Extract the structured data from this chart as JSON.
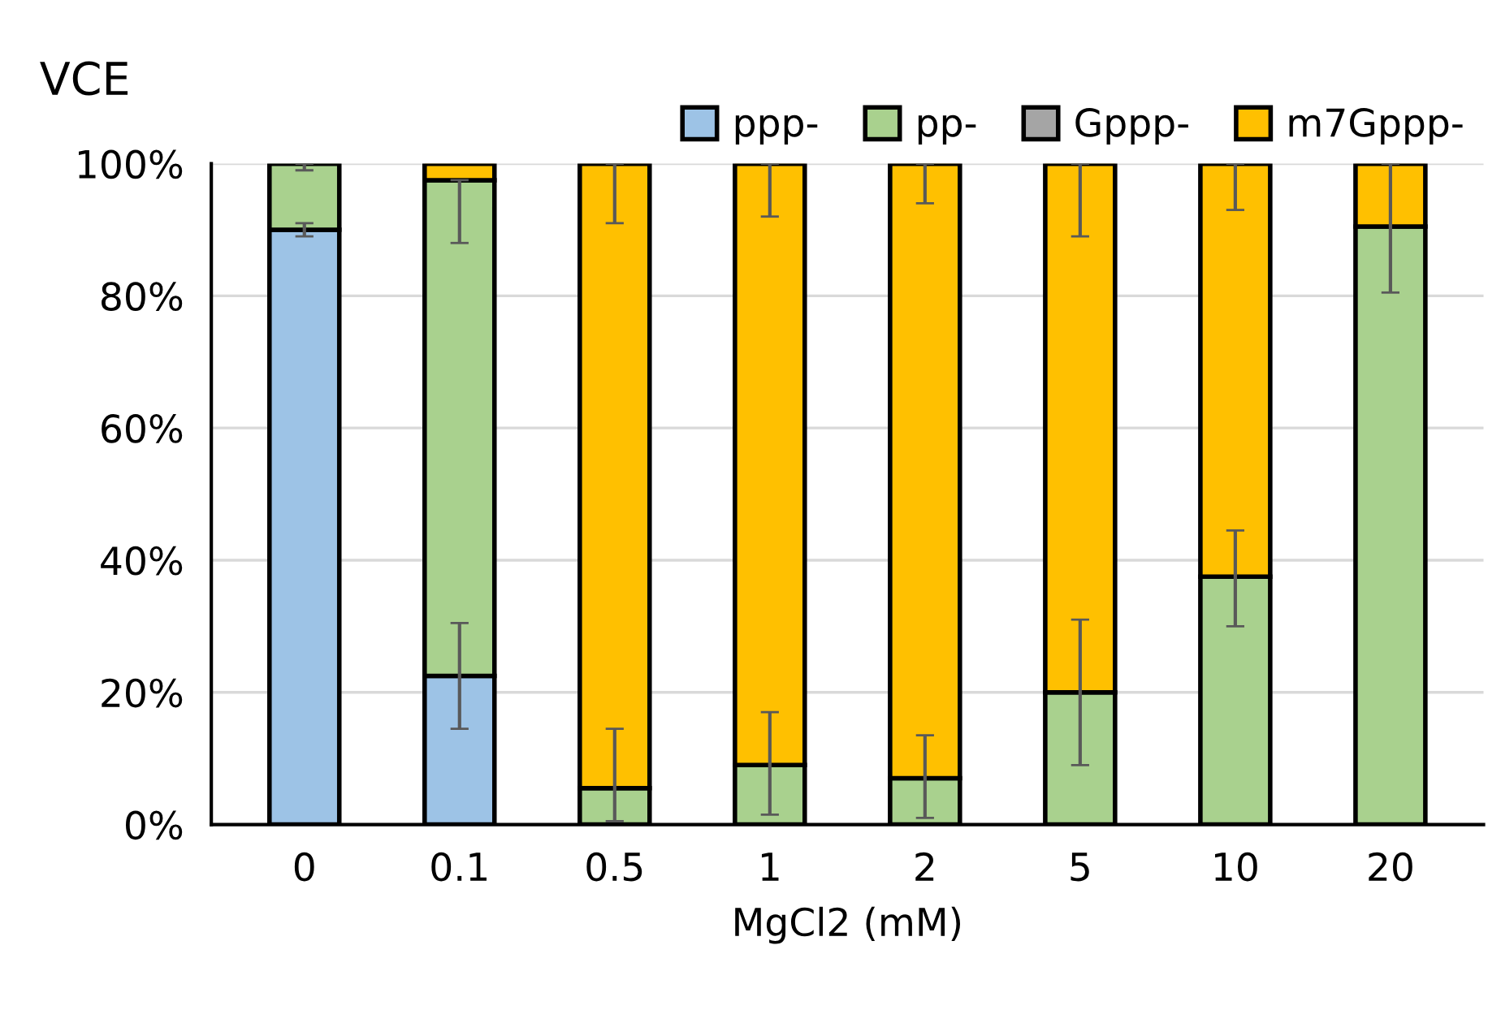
{
  "chart_data": {
    "type": "bar",
    "stacked": true,
    "ylabel": "VCE",
    "xlabel": "MgCl2 (mM)",
    "categories": [
      "0",
      "0.1",
      "0.5",
      "1",
      "2",
      "5",
      "10",
      "20"
    ],
    "series": [
      {
        "name": "ppp-",
        "color": "#9dc3e6",
        "values": [
          90,
          22.5,
          0,
          0,
          0,
          0,
          0,
          0
        ],
        "errors": [
          [
            89,
            91
          ],
          [
            14.5,
            30.5
          ],
          null,
          null,
          null,
          null,
          null,
          null
        ]
      },
      {
        "name": "pp-",
        "color": "#a9d18e",
        "values": [
          10,
          75,
          5.5,
          9,
          7,
          20,
          37.5,
          90.5
        ],
        "errors": [
          [
            99,
            100
          ],
          [
            88,
            97.5
          ],
          [
            0.5,
            14.5
          ],
          [
            1.5,
            17
          ],
          [
            1,
            13.5
          ],
          [
            9,
            31
          ],
          [
            30,
            44.5
          ],
          [
            80.5,
            100
          ]
        ]
      },
      {
        "name": "Gppp-",
        "color": "#a5a5a5",
        "values": [
          0,
          0,
          0,
          0,
          0,
          0,
          0,
          0
        ]
      },
      {
        "name": "m7Gppp-",
        "color": "#ffc000",
        "values": [
          0,
          2.5,
          94.5,
          91,
          93,
          80,
          62.5,
          9.5
        ],
        "errors": [
          null,
          null,
          [
            91,
            100
          ],
          [
            92,
            100
          ],
          [
            94,
            100
          ],
          [
            89,
            100
          ],
          [
            93,
            100
          ],
          null
        ]
      }
    ],
    "ylim": [
      0,
      100
    ],
    "yticks": [
      {
        "value": 0,
        "label": "0%"
      },
      {
        "value": 20,
        "label": "20%"
      },
      {
        "value": 40,
        "label": "40%"
      },
      {
        "value": 60,
        "label": "60%"
      },
      {
        "value": 80,
        "label": "80%"
      },
      {
        "value": 100,
        "label": "100%"
      }
    ],
    "grid": "y",
    "legend": "top right"
  }
}
